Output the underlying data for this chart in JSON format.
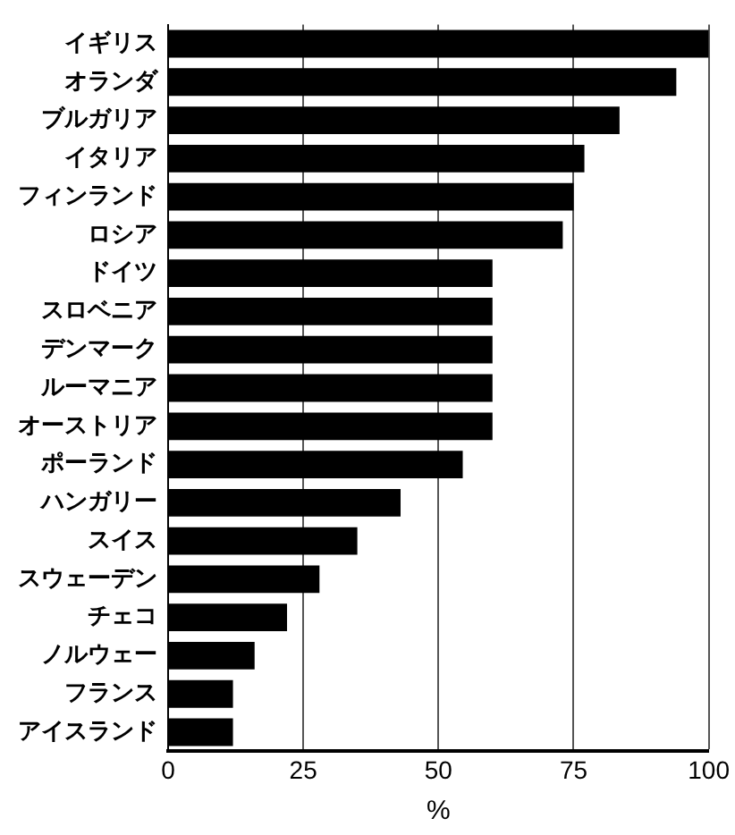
{
  "chart_data": {
    "type": "bar",
    "orientation": "horizontal",
    "xlabel": "%",
    "categories": [
      "イギリス",
      "オランダ",
      "ブルガリア",
      "イタリア",
      "フィンランド",
      "ロシア",
      "ドイツ",
      "スロベニア",
      "デンマーク",
      "ルーマニア",
      "オーストリア",
      "ポーランド",
      "ハンガリー",
      "スイス",
      "スウェーデン",
      "チェコ",
      "ノルウェー",
      "フランス",
      "アイスランド"
    ],
    "values": [
      100,
      94,
      83.5,
      77,
      75,
      73,
      60,
      60,
      60,
      60,
      60,
      54.5,
      43,
      35,
      28,
      22,
      16,
      12,
      12
    ],
    "color": "#000000",
    "xlim": [
      0,
      100
    ],
    "xticks": [
      0,
      25,
      50,
      75,
      100
    ],
    "grid": "x"
  }
}
